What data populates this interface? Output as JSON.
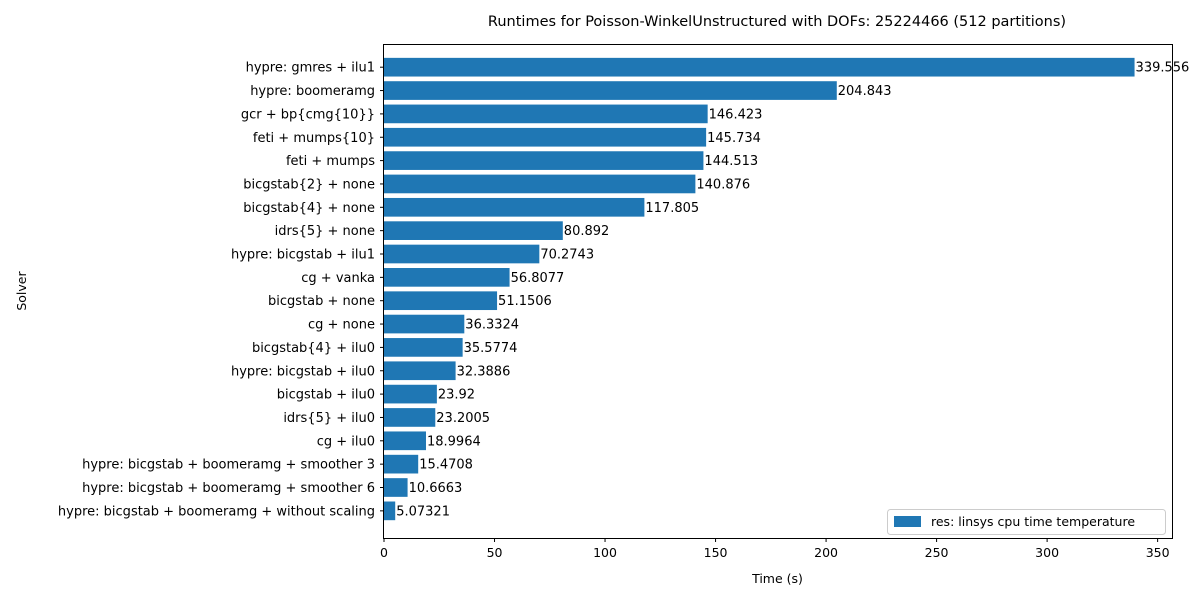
{
  "chart_data": {
    "type": "bar",
    "orientation": "horizontal",
    "title": "Runtimes for Poisson-WinkelUnstructured with DOFs: 25224466 (512 partitions)",
    "xlabel": "Time (s)",
    "ylabel": "Solver",
    "xlim": [
      0,
      356.5
    ],
    "xticks": [
      0,
      50,
      100,
      150,
      200,
      250,
      300,
      350
    ],
    "xtick_labels": [
      "0",
      "50",
      "100",
      "150",
      "200",
      "250",
      "300",
      "350"
    ],
    "grid": false,
    "legend_position": "lower-right",
    "bar_color": "#1f77b4",
    "categories": [
      "hypre: gmres + ilu1",
      "hypre: boomeramg",
      "gcr + bp{cmg{10}}",
      "feti + mumps{10}",
      "feti + mumps",
      "bicgstab{2} + none",
      "bicgstab{4} + none",
      "idrs{5} + none",
      "hypre: bicgstab + ilu1",
      "cg + vanka",
      "bicgstab + none",
      "cg + none",
      "bicgstab{4} + ilu0",
      "hypre: bicgstab + ilu0",
      "bicgstab + ilu0",
      "idrs{5} + ilu0",
      "cg + ilu0",
      "hypre: bicgstab + boomeramg + smoother 3",
      "hypre: bicgstab + boomeramg + smoother 6",
      "hypre: bicgstab + boomeramg + without scaling"
    ],
    "series": [
      {
        "name": "res: linsys cpu time temperature",
        "values": [
          339.556,
          204.843,
          146.423,
          145.734,
          144.513,
          140.876,
          117.805,
          80.892,
          70.2743,
          56.8077,
          51.1506,
          36.3324,
          35.5774,
          32.3886,
          23.92,
          23.2005,
          18.9964,
          15.4708,
          10.6663,
          5.07321
        ],
        "value_labels": [
          "339.556",
          "204.843",
          "146.423",
          "145.734",
          "144.513",
          "140.876",
          "117.805",
          "80.892",
          "70.2743",
          "56.8077",
          "51.1506",
          "36.3324",
          "35.5774",
          "32.3886",
          "23.92",
          "23.2005",
          "18.9964",
          "15.4708",
          "10.6663",
          "5.07321"
        ]
      }
    ]
  }
}
